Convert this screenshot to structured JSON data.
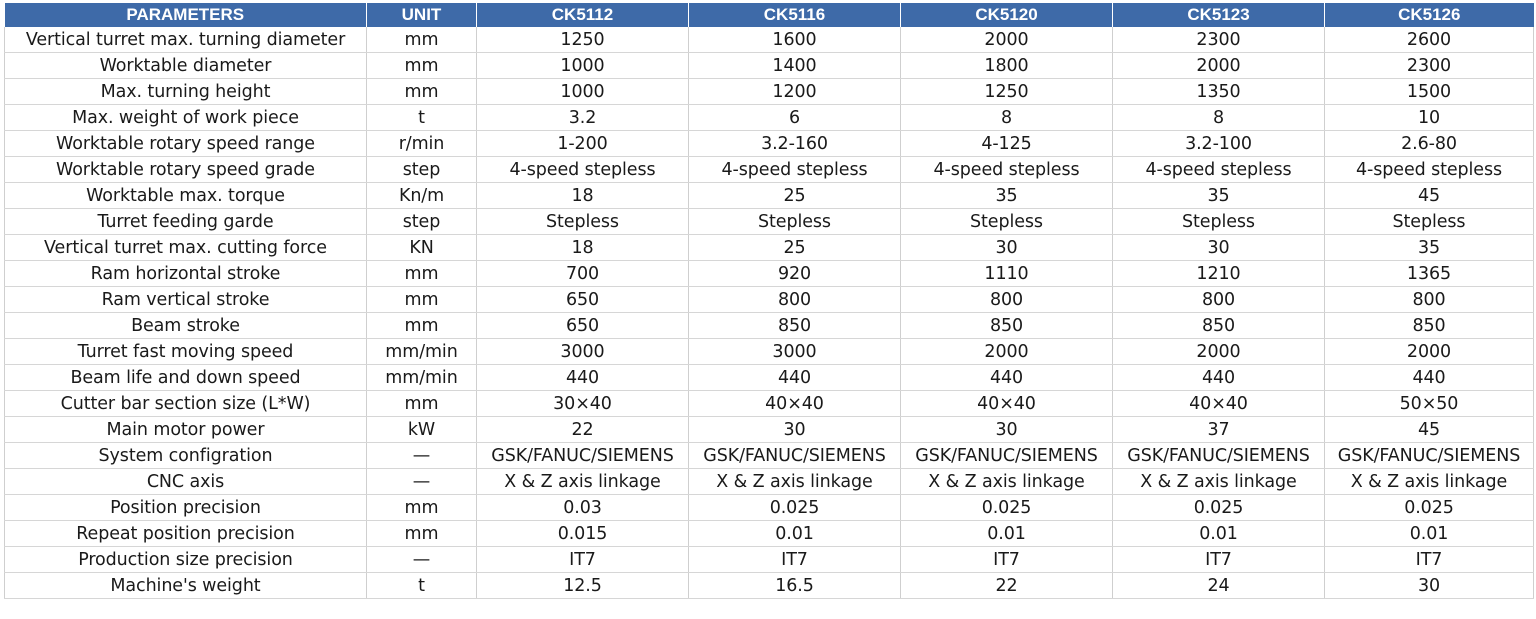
{
  "table": {
    "headers": [
      "PARAMETERS",
      "UNIT",
      "CK5112",
      "CK5116",
      "CK5120",
      "CK5123",
      "CK5126"
    ],
    "rows": [
      [
        "Vertical turret max. turning diameter",
        "mm",
        "1250",
        "1600",
        "2000",
        "2300",
        "2600"
      ],
      [
        "Worktable diameter",
        "mm",
        "1000",
        "1400",
        "1800",
        "2000",
        "2300"
      ],
      [
        "Max. turning height",
        "mm",
        "1000",
        "1200",
        "1250",
        "1350",
        "1500"
      ],
      [
        "Max. weight of work piece",
        "t",
        "3.2",
        "6",
        "8",
        "8",
        "10"
      ],
      [
        "Worktable rotary speed range",
        "r/min",
        "1-200",
        "3.2-160",
        "4-125",
        "3.2-100",
        "2.6-80"
      ],
      [
        "Worktable rotary speed grade",
        "step",
        "4-speed stepless",
        "4-speed stepless",
        "4-speed stepless",
        "4-speed stepless",
        "4-speed stepless"
      ],
      [
        "Worktable max. torque",
        "Kn/m",
        "18",
        "25",
        "35",
        "35",
        "45"
      ],
      [
        "Turret feeding garde",
        "step",
        "Stepless",
        "Stepless",
        "Stepless",
        "Stepless",
        "Stepless"
      ],
      [
        "Vertical turret max. cutting force",
        "KN",
        "18",
        "25",
        "30",
        "30",
        "35"
      ],
      [
        "Ram horizontal stroke",
        "mm",
        "700",
        "920",
        "1110",
        "1210",
        "1365"
      ],
      [
        "Ram vertical stroke",
        "mm",
        "650",
        "800",
        "800",
        "800",
        "800"
      ],
      [
        "Beam stroke",
        "mm",
        "650",
        "850",
        "850",
        "850",
        "850"
      ],
      [
        "Turret fast moving speed",
        "mm/min",
        "3000",
        "3000",
        "2000",
        "2000",
        "2000"
      ],
      [
        "Beam life and down speed",
        "mm/min",
        "440",
        "440",
        "440",
        "440",
        "440"
      ],
      [
        "Cutter bar section size (L*W)",
        "mm",
        "30×40",
        "40×40",
        "40×40",
        "40×40",
        "50×50"
      ],
      [
        "Main motor power",
        "kW",
        "22",
        "30",
        "30",
        "37",
        "45"
      ],
      [
        "System configration",
        "—",
        "GSK/FANUC/SIEMENS",
        "GSK/FANUC/SIEMENS",
        "GSK/FANUC/SIEMENS",
        "GSK/FANUC/SIEMENS",
        "GSK/FANUC/SIEMENS"
      ],
      [
        "CNC axis",
        "—",
        "X & Z axis linkage",
        "X & Z axis linkage",
        "X & Z axis linkage",
        "X & Z axis linkage",
        "X & Z axis linkage"
      ],
      [
        "Position precision",
        "mm",
        "0.03",
        "0.025",
        "0.025",
        "0.025",
        "0.025"
      ],
      [
        "Repeat position precision",
        "mm",
        "0.015",
        "0.01",
        "0.01",
        "0.01",
        "0.01"
      ],
      [
        "Production size precision",
        "—",
        "IT7",
        "IT7",
        "IT7",
        "IT7",
        "IT7"
      ],
      [
        "Machine's weight",
        "t",
        "12.5",
        "16.5",
        "22",
        "24",
        "30"
      ]
    ]
  },
  "colors": {
    "header_background": "#3e6aa8",
    "header_text": "#ffffff",
    "body_text": "#1a1a1a",
    "grid_line": "#cfcfcf"
  }
}
